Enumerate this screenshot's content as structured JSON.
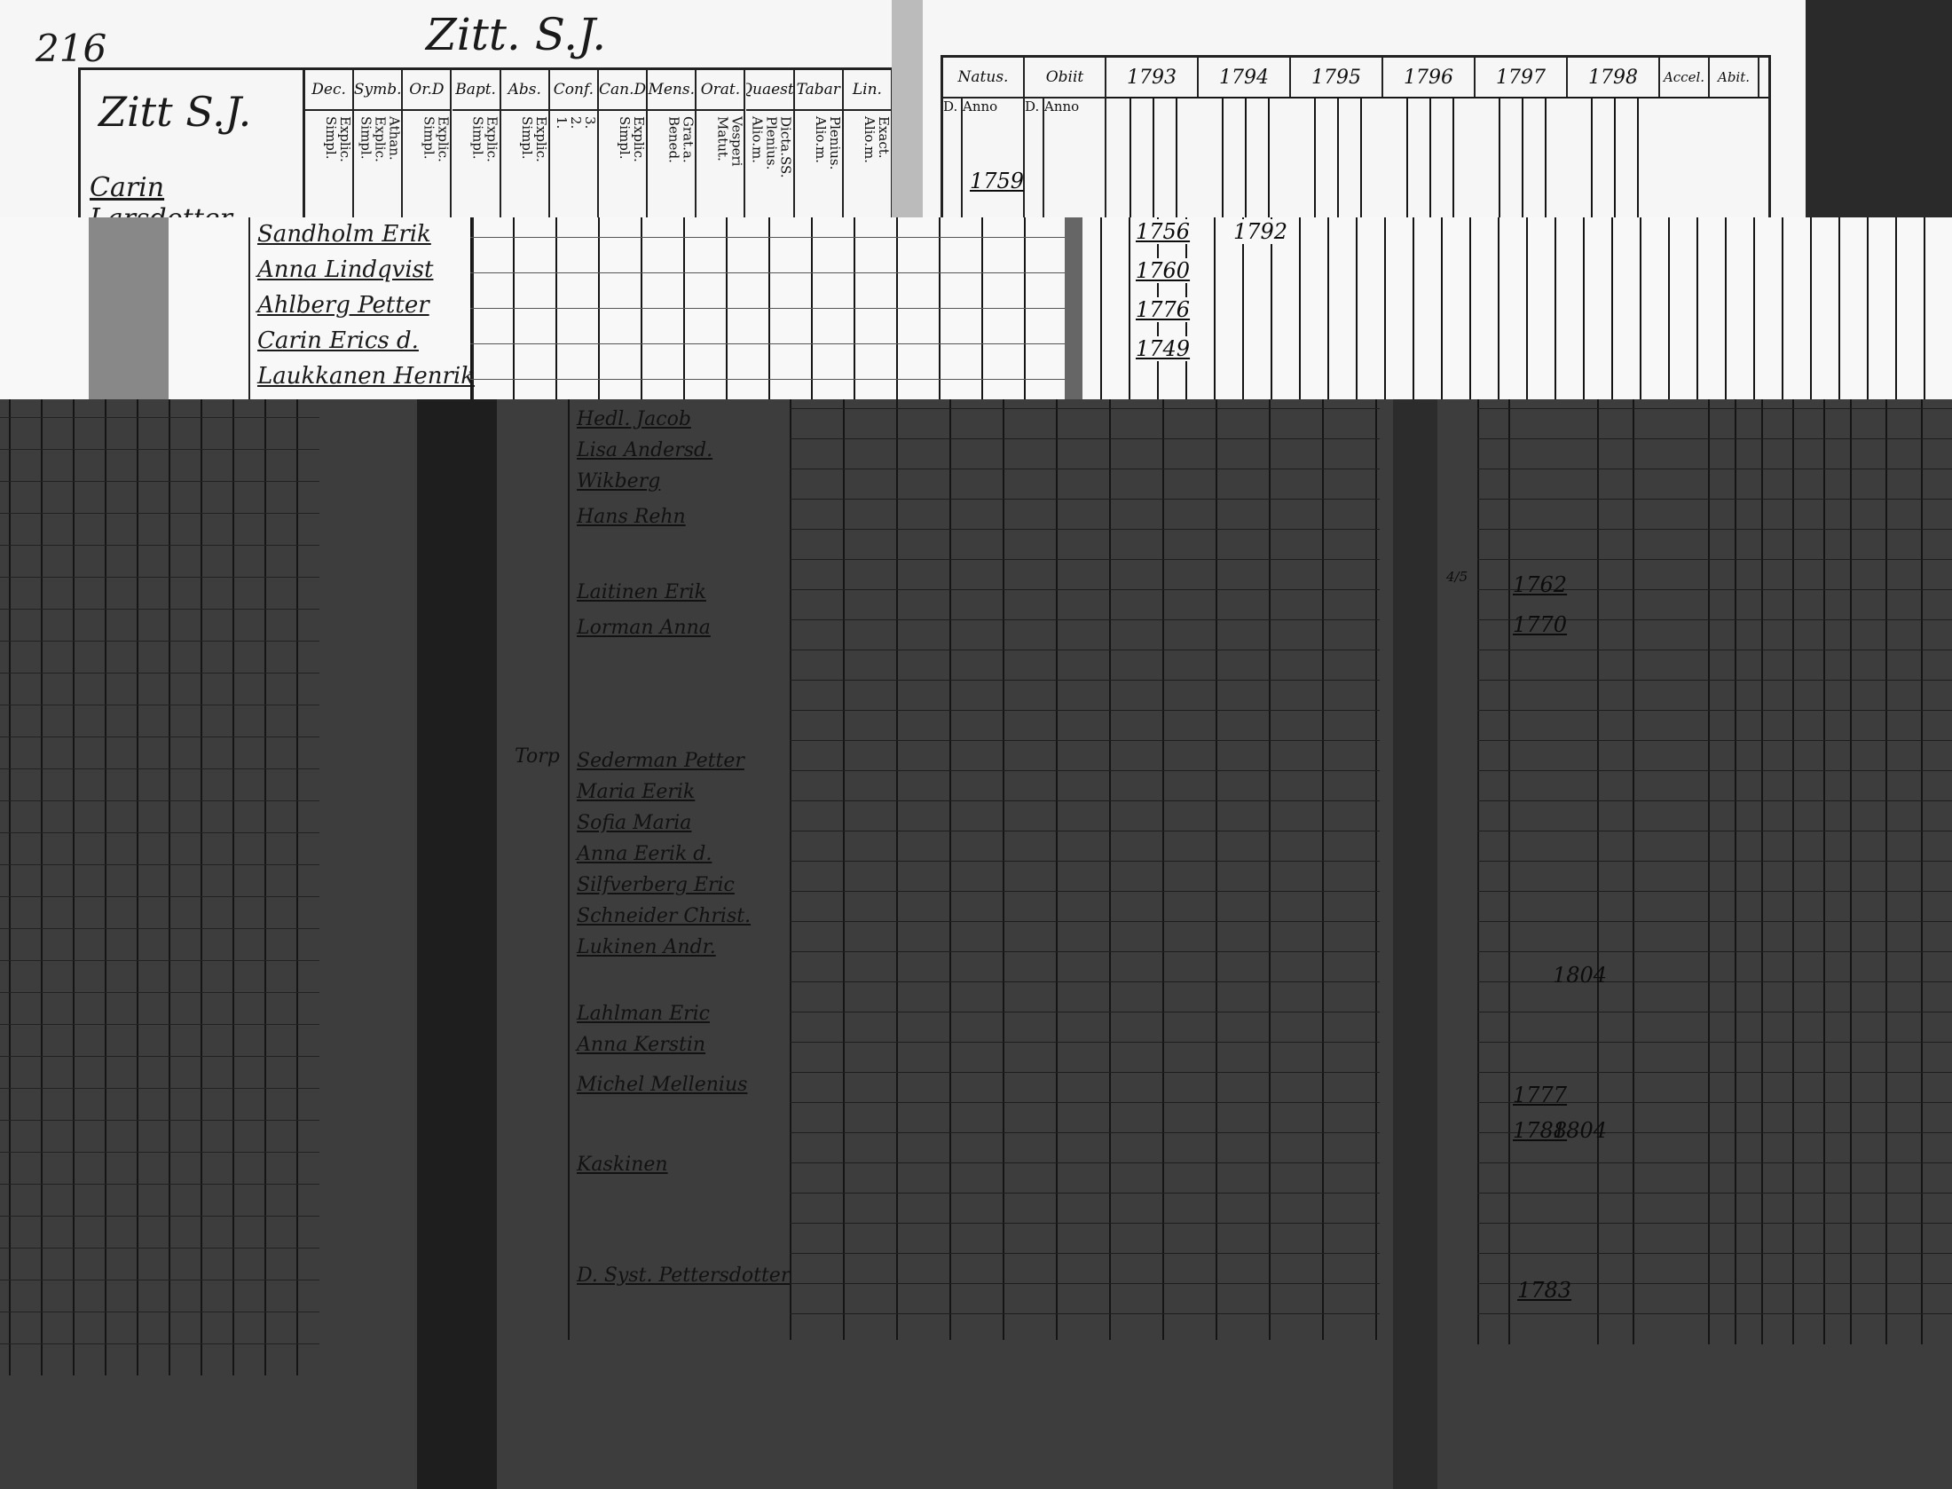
{
  "top": {
    "page_number": "216",
    "village_heading": "Zitt. S.J.",
    "household_label": "Zitt S.J.",
    "first_name": "Carin Larsdotter",
    "left_table": {
      "columns": [
        {
          "label": "Dec.",
          "sub": "Explic.\nSimpl."
        },
        {
          "label": "Symb.",
          "sub": "Athan.\nExplic.\nSimpl."
        },
        {
          "label": "Or.D",
          "sub": "Explic.\nSimpl."
        },
        {
          "label": "Bapt.",
          "sub": "Explic.\nSimpl."
        },
        {
          "label": "Abs.",
          "sub": "Explic.\nSimpl."
        },
        {
          "label": "Conf.",
          "sub": "3.\n2.\n1."
        },
        {
          "label": "Can.D",
          "sub": "Explic.\nSimpl."
        },
        {
          "label": "Mens.",
          "sub": "Grat.a.\nBened."
        },
        {
          "label": "Orat.",
          "sub": "Vesperi\nMatut."
        },
        {
          "label": "Quaest.",
          "sub": "Dicta.SS.\nPlenius.\nAlio.m."
        },
        {
          "label": "Tabar",
          "sub": "Plenius.\nAlio.m."
        },
        {
          "label": "Lin.",
          "sub": "Exact.\nAlio.m."
        }
      ]
    },
    "right_table": {
      "natus": "Natus.",
      "obiit": "Obiit",
      "natus_sub": [
        "D.",
        "Anno"
      ],
      "obiit_sub": [
        "D.",
        "Anno"
      ],
      "years": [
        "1793",
        "1794",
        "1795",
        "1796",
        "1797",
        "1798"
      ],
      "tail": [
        "Accel.",
        "Abit."
      ],
      "first_birth_year": "1759"
    }
  },
  "middle": {
    "names": [
      "Sandholm Erik",
      "Anna Lindqvist",
      "Ahlberg Petter",
      "Carin Erics d.",
      "Laukkanen Henrik"
    ],
    "birth_years": [
      "1756",
      "1760",
      "1776",
      "1749"
    ],
    "death_year": "1792"
  },
  "lower": {
    "names": [
      "Hedl. Jacob",
      "Lisa Andersd.",
      "Wikberg",
      "Hans Rehn",
      "Laitinen Erik",
      "Lorman Anna",
      "Sederman Petter",
      "Maria Eerik",
      "Sofia Maria",
      "Anna Eerik d.",
      "Silfverberg Eric",
      "Schneider Christ.",
      "Lukinen Andr.",
      "Lahlman Eric",
      "Anna Kerstin",
      "Michel Mellenius",
      "Kaskinen",
      "D. Syst. Pettersdotter"
    ],
    "margin_note": "Torp",
    "birth_years": [
      "1762",
      "1770",
      "1777",
      "1788",
      "1783"
    ],
    "other_years": [
      "1804",
      "1804"
    ],
    "first_day": "4/5"
  },
  "colors": {
    "paper": "#f6f6f6",
    "shadow": "#3d3d3d",
    "ink": "#111111"
  }
}
